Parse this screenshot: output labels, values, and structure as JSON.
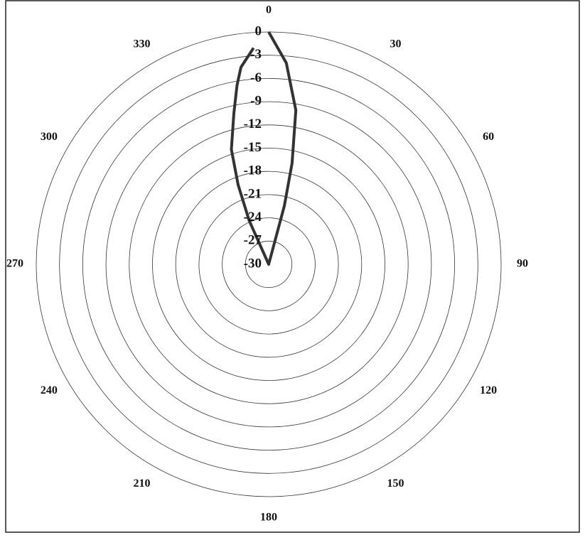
{
  "chart_data": {
    "type": "polar",
    "x": [
      0,
      5,
      10,
      13,
      15,
      20,
      90,
      180,
      270,
      336,
      339,
      342,
      347,
      350,
      352,
      356
    ],
    "values": [
      0,
      -3.9,
      -9.8,
      -16.6,
      -22.2,
      -30,
      -30,
      -30,
      -30,
      -23.8,
      -19,
      -14.4,
      -10,
      -6.5,
      -4.3,
      -2
    ],
    "color": "#333333",
    "rlim": [
      -30,
      0
    ],
    "rticks": [
      0,
      -3,
      -6,
      -9,
      -12,
      -15,
      -18,
      -21,
      -24,
      -27,
      -30
    ],
    "thetaticks": [
      0,
      30,
      60,
      90,
      120,
      150,
      180,
      210,
      240,
      270,
      300,
      330
    ]
  }
}
